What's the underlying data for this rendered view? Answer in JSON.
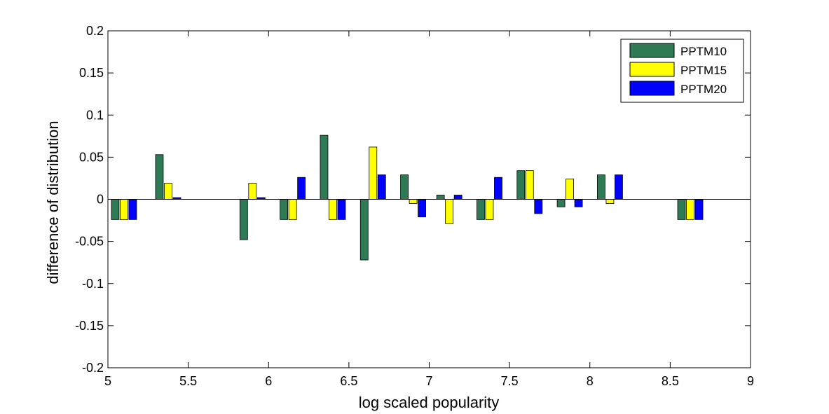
{
  "chart_data": {
    "type": "bar",
    "title": "",
    "xlabel": "log scaled popularity",
    "ylabel": "difference of distribution",
    "xlim": [
      5,
      9
    ],
    "ylim": [
      -0.2,
      0.2
    ],
    "xticks": [
      "5",
      "5.5",
      "6",
      "6.5",
      "7",
      "7.5",
      "8",
      "8.5",
      "9"
    ],
    "yticks": [
      "0.2",
      "0.15",
      "0.1",
      "0.05",
      "0",
      "-0.05",
      "-0.1",
      "-0.15",
      "-0.2"
    ],
    "grid": false,
    "legend_position": "top-right",
    "x": [
      5.1,
      5.375,
      5.9,
      6.15,
      6.4,
      6.65,
      6.9,
      7.125,
      7.375,
      7.625,
      7.875,
      8.125,
      8.625
    ],
    "series": [
      {
        "name": "PPTM10",
        "color": "#2e7a55",
        "values": [
          -0.024,
          0.053,
          -0.048,
          -0.024,
          0.076,
          -0.072,
          0.029,
          0.005,
          -0.024,
          0.034,
          -0.009,
          0.029,
          -0.024
        ]
      },
      {
        "name": "PPTM15",
        "color": "#ffff00",
        "values": [
          -0.024,
          0.019,
          0.019,
          -0.024,
          -0.024,
          0.062,
          -0.005,
          -0.029,
          -0.024,
          0.034,
          0.024,
          -0.005,
          -0.024
        ]
      },
      {
        "name": "PPTM20",
        "color": "#0000ff",
        "values": [
          -0.024,
          0.002,
          0.002,
          0.026,
          -0.024,
          0.029,
          -0.021,
          0.005,
          0.026,
          -0.017,
          -0.009,
          0.029,
          -0.024
        ]
      }
    ]
  }
}
